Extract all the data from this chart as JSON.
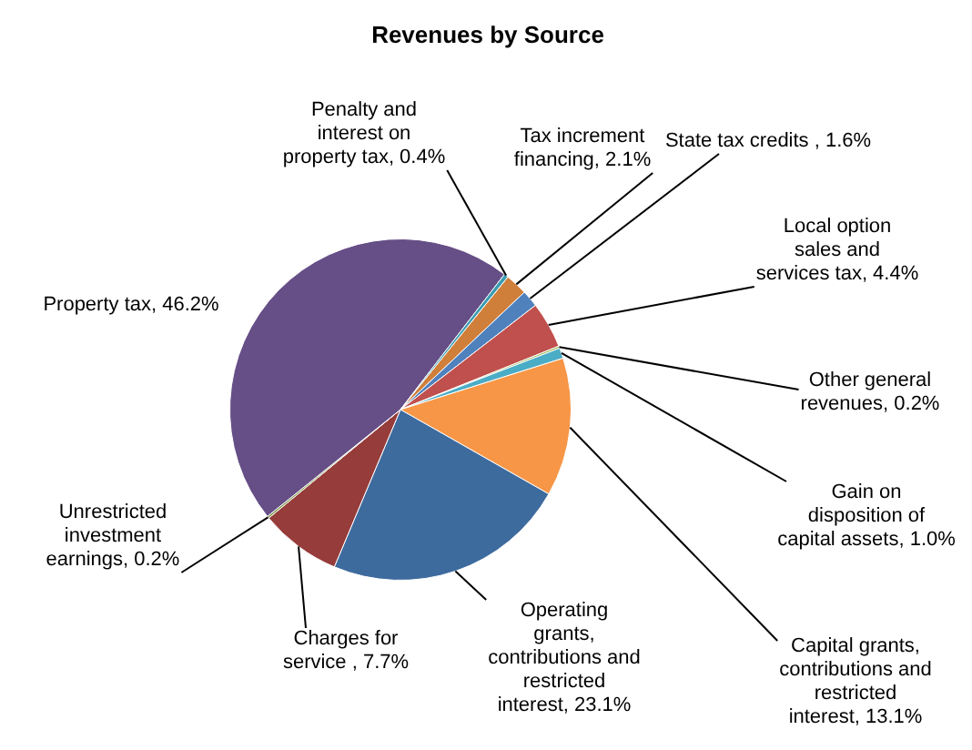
{
  "chart_data": {
    "type": "pie",
    "title": "Revenues by Source",
    "categories": [
      "Tax increment financing",
      "State tax credits ",
      "Local option sales and services tax",
      "Other general revenues",
      "Gain on disposition of capital assets",
      "Capital grants, contributions and restricted interest",
      "Operating grants, contributions and restricted interest",
      "Charges for service ",
      "Unrestricted investment earnings",
      "Property tax",
      "Penalty and interest on property tax"
    ],
    "values": [
      2.1,
      1.6,
      4.4,
      0.2,
      1.0,
      13.1,
      23.1,
      7.7,
      0.2,
      46.2,
      0.4
    ],
    "value_labels": [
      "2.1%",
      "1.6%",
      "4.4%",
      "0.2%",
      "1.0%",
      "13.1%",
      "23.1%",
      "7.7%",
      "0.2%",
      "46.2%",
      "0.4%"
    ],
    "colors": [
      "#d07f3a",
      "#4f81bd",
      "#c0504d",
      "#9bbb59",
      "#4bacc6",
      "#f79646",
      "#3e6b9e",
      "#963c3a",
      "#7f9a48",
      "#664e86",
      "#3b9cb0"
    ],
    "legend": false
  }
}
